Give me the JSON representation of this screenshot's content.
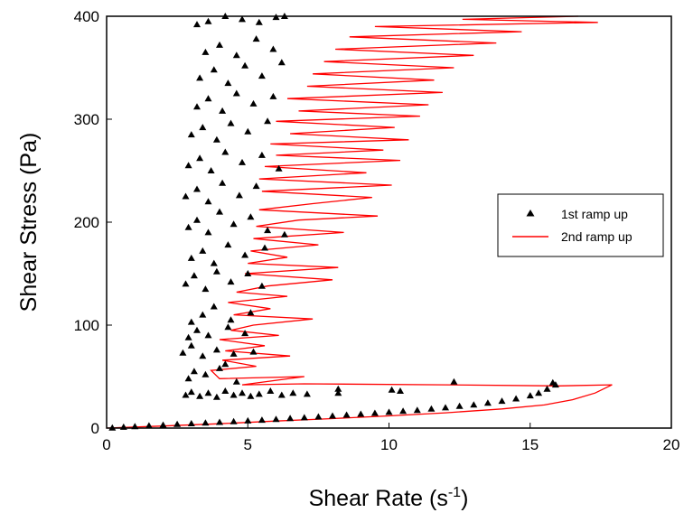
{
  "chart_data": {
    "type": "scatter",
    "xlabel": "Shear Rate (s",
    "xlabel_sup": "-1",
    "xlabel_close": ")",
    "ylabel": "Shear Stress (Pa)",
    "xlim": [
      0,
      20
    ],
    "ylim": [
      0,
      400
    ],
    "xticks": [
      0,
      5,
      10,
      15,
      20
    ],
    "yticks": [
      0,
      100,
      200,
      300,
      400
    ],
    "grid": false,
    "legend_position": "right",
    "colors": {
      "series1": "#000000",
      "series2": "#ff0000"
    },
    "series": [
      {
        "name": "1st ramp up",
        "marker": "triangle",
        "points": [
          [
            0.2,
            0.3
          ],
          [
            0.6,
            1.0
          ],
          [
            1.0,
            1.6
          ],
          [
            1.5,
            2.3
          ],
          [
            2.0,
            3.0
          ],
          [
            2.5,
            3.7
          ],
          [
            3.0,
            4.4
          ],
          [
            3.5,
            5.0
          ],
          [
            4.0,
            5.7
          ],
          [
            4.5,
            6.4
          ],
          [
            5.0,
            7.1
          ],
          [
            5.5,
            7.8
          ],
          [
            6.0,
            8.6
          ],
          [
            6.5,
            9.4
          ],
          [
            7.0,
            10.2
          ],
          [
            7.5,
            11.0
          ],
          [
            8.0,
            11.8
          ],
          [
            8.5,
            12.7
          ],
          [
            9.0,
            13.6
          ],
          [
            9.5,
            14.5
          ],
          [
            10.0,
            15.4
          ],
          [
            10.5,
            16.4
          ],
          [
            11.0,
            17.4
          ],
          [
            11.5,
            18.6
          ],
          [
            12.0,
            19.8
          ],
          [
            12.5,
            21.2
          ],
          [
            13.0,
            22.6
          ],
          [
            13.5,
            24.3
          ],
          [
            14.0,
            26.2
          ],
          [
            14.5,
            28.5
          ],
          [
            15.0,
            31.5
          ],
          [
            15.3,
            34.0
          ],
          [
            15.6,
            38.0
          ],
          [
            15.9,
            42.0
          ],
          [
            2.8,
            32
          ],
          [
            3.0,
            35
          ],
          [
            3.3,
            31
          ],
          [
            3.6,
            34
          ],
          [
            3.9,
            30
          ],
          [
            4.2,
            36
          ],
          [
            4.5,
            32
          ],
          [
            4.8,
            34
          ],
          [
            5.1,
            31
          ],
          [
            5.4,
            33
          ],
          [
            5.8,
            36
          ],
          [
            6.2,
            32
          ],
          [
            6.6,
            34
          ],
          [
            7.1,
            33
          ],
          [
            8.2,
            34
          ],
          [
            8.2,
            38
          ],
          [
            10.1,
            37
          ],
          [
            10.4,
            36
          ],
          [
            12.3,
            45
          ],
          [
            15.8,
            44
          ],
          [
            2.7,
            73
          ],
          [
            3.0,
            80
          ],
          [
            3.4,
            70
          ],
          [
            3.9,
            76
          ],
          [
            4.5,
            72
          ],
          [
            5.2,
            74
          ],
          [
            2.9,
            48
          ],
          [
            3.1,
            55
          ],
          [
            3.5,
            52
          ],
          [
            4.0,
            58
          ],
          [
            4.6,
            45
          ],
          [
            4.2,
            62
          ],
          [
            2.9,
            88
          ],
          [
            3.2,
            95
          ],
          [
            3.6,
            90
          ],
          [
            4.3,
            98
          ],
          [
            4.9,
            92
          ],
          [
            3.0,
            103
          ],
          [
            3.4,
            110
          ],
          [
            3.8,
            118
          ],
          [
            4.4,
            105
          ],
          [
            5.1,
            112
          ],
          [
            2.8,
            140
          ],
          [
            3.1,
            148
          ],
          [
            3.5,
            135
          ],
          [
            3.9,
            152
          ],
          [
            4.4,
            142
          ],
          [
            5.0,
            150
          ],
          [
            5.5,
            138
          ],
          [
            3.0,
            165
          ],
          [
            3.4,
            172
          ],
          [
            3.8,
            160
          ],
          [
            4.3,
            178
          ],
          [
            4.9,
            168
          ],
          [
            5.6,
            175
          ],
          [
            2.9,
            195
          ],
          [
            3.2,
            202
          ],
          [
            3.6,
            190
          ],
          [
            4.0,
            210
          ],
          [
            4.5,
            198
          ],
          [
            5.1,
            205
          ],
          [
            5.7,
            192
          ],
          [
            6.3,
            188
          ],
          [
            2.8,
            225
          ],
          [
            3.2,
            232
          ],
          [
            3.6,
            220
          ],
          [
            4.1,
            238
          ],
          [
            4.7,
            226
          ],
          [
            5.3,
            235
          ],
          [
            2.9,
            255
          ],
          [
            3.3,
            262
          ],
          [
            3.7,
            250
          ],
          [
            4.2,
            268
          ],
          [
            4.8,
            258
          ],
          [
            5.5,
            265
          ],
          [
            6.1,
            252
          ],
          [
            3.0,
            285
          ],
          [
            3.4,
            292
          ],
          [
            3.9,
            280
          ],
          [
            4.4,
            296
          ],
          [
            5.0,
            288
          ],
          [
            5.7,
            298
          ],
          [
            3.2,
            312
          ],
          [
            3.6,
            320
          ],
          [
            4.1,
            308
          ],
          [
            4.6,
            325
          ],
          [
            5.2,
            315
          ],
          [
            5.9,
            322
          ],
          [
            3.3,
            340
          ],
          [
            3.8,
            348
          ],
          [
            4.3,
            335
          ],
          [
            4.9,
            352
          ],
          [
            5.5,
            342
          ],
          [
            6.2,
            355
          ],
          [
            3.5,
            365
          ],
          [
            4.0,
            372
          ],
          [
            4.6,
            362
          ],
          [
            5.3,
            378
          ],
          [
            5.9,
            368
          ],
          [
            3.2,
            392
          ],
          [
            3.6,
            395
          ],
          [
            4.2,
            400
          ],
          [
            4.8,
            397
          ],
          [
            5.4,
            394
          ],
          [
            6.0,
            399
          ],
          [
            6.3,
            400
          ]
        ]
      },
      {
        "name": "2nd ramp up",
        "marker": "line",
        "points": [
          [
            0.0,
            0.0
          ],
          [
            2.0,
            2.0
          ],
          [
            4.0,
            4.2
          ],
          [
            6.0,
            6.8
          ],
          [
            8.0,
            9.2
          ],
          [
            10.0,
            11.8
          ],
          [
            12.0,
            14.8
          ],
          [
            14.0,
            18.6
          ],
          [
            15.5,
            22.5
          ],
          [
            16.5,
            27.5
          ],
          [
            17.3,
            34.0
          ],
          [
            17.9,
            42.0
          ],
          [
            16.0,
            41
          ],
          [
            12.0,
            42
          ],
          [
            7.0,
            43
          ],
          [
            4.8,
            42
          ],
          [
            7.0,
            50
          ],
          [
            4.0,
            48
          ],
          [
            3.7,
            56
          ],
          [
            5.3,
            60
          ],
          [
            4.1,
            66
          ],
          [
            6.5,
            70
          ],
          [
            4.2,
            75
          ],
          [
            5.6,
            80
          ],
          [
            4.0,
            86
          ],
          [
            6.1,
            90
          ],
          [
            4.4,
            95
          ],
          [
            5.2,
            100
          ],
          [
            7.3,
            106
          ],
          [
            4.5,
            110
          ],
          [
            5.8,
            116
          ],
          [
            4.3,
            122
          ],
          [
            6.4,
            128
          ],
          [
            4.6,
            132
          ],
          [
            5.7,
            138
          ],
          [
            8.0,
            144
          ],
          [
            4.9,
            150
          ],
          [
            8.2,
            156
          ],
          [
            5.0,
            160
          ],
          [
            6.4,
            166
          ],
          [
            5.1,
            172
          ],
          [
            7.5,
            178
          ],
          [
            5.2,
            184
          ],
          [
            8.4,
            190
          ],
          [
            5.3,
            196
          ],
          [
            6.8,
            202
          ],
          [
            9.6,
            206
          ],
          [
            5.4,
            212
          ],
          [
            7.3,
            218
          ],
          [
            9.4,
            224
          ],
          [
            5.5,
            230
          ],
          [
            10.1,
            236
          ],
          [
            5.4,
            242
          ],
          [
            9.2,
            248
          ],
          [
            5.6,
            254
          ],
          [
            10.4,
            260
          ],
          [
            6.0,
            265
          ],
          [
            9.8,
            270
          ],
          [
            5.8,
            276
          ],
          [
            10.7,
            280
          ],
          [
            6.5,
            286
          ],
          [
            10.2,
            292
          ],
          [
            6.0,
            298
          ],
          [
            11.1,
            303
          ],
          [
            6.8,
            308
          ],
          [
            11.4,
            314
          ],
          [
            6.4,
            320
          ],
          [
            11.9,
            326
          ],
          [
            7.1,
            332
          ],
          [
            11.6,
            338
          ],
          [
            7.3,
            344
          ],
          [
            12.3,
            350
          ],
          [
            7.7,
            356
          ],
          [
            13.0,
            362
          ],
          [
            8.1,
            368
          ],
          [
            13.8,
            374
          ],
          [
            8.6,
            380
          ],
          [
            14.7,
            385
          ],
          [
            9.5,
            390
          ],
          [
            17.4,
            394
          ],
          [
            12.6,
            397
          ],
          [
            16.7,
            400
          ]
        ]
      }
    ]
  }
}
